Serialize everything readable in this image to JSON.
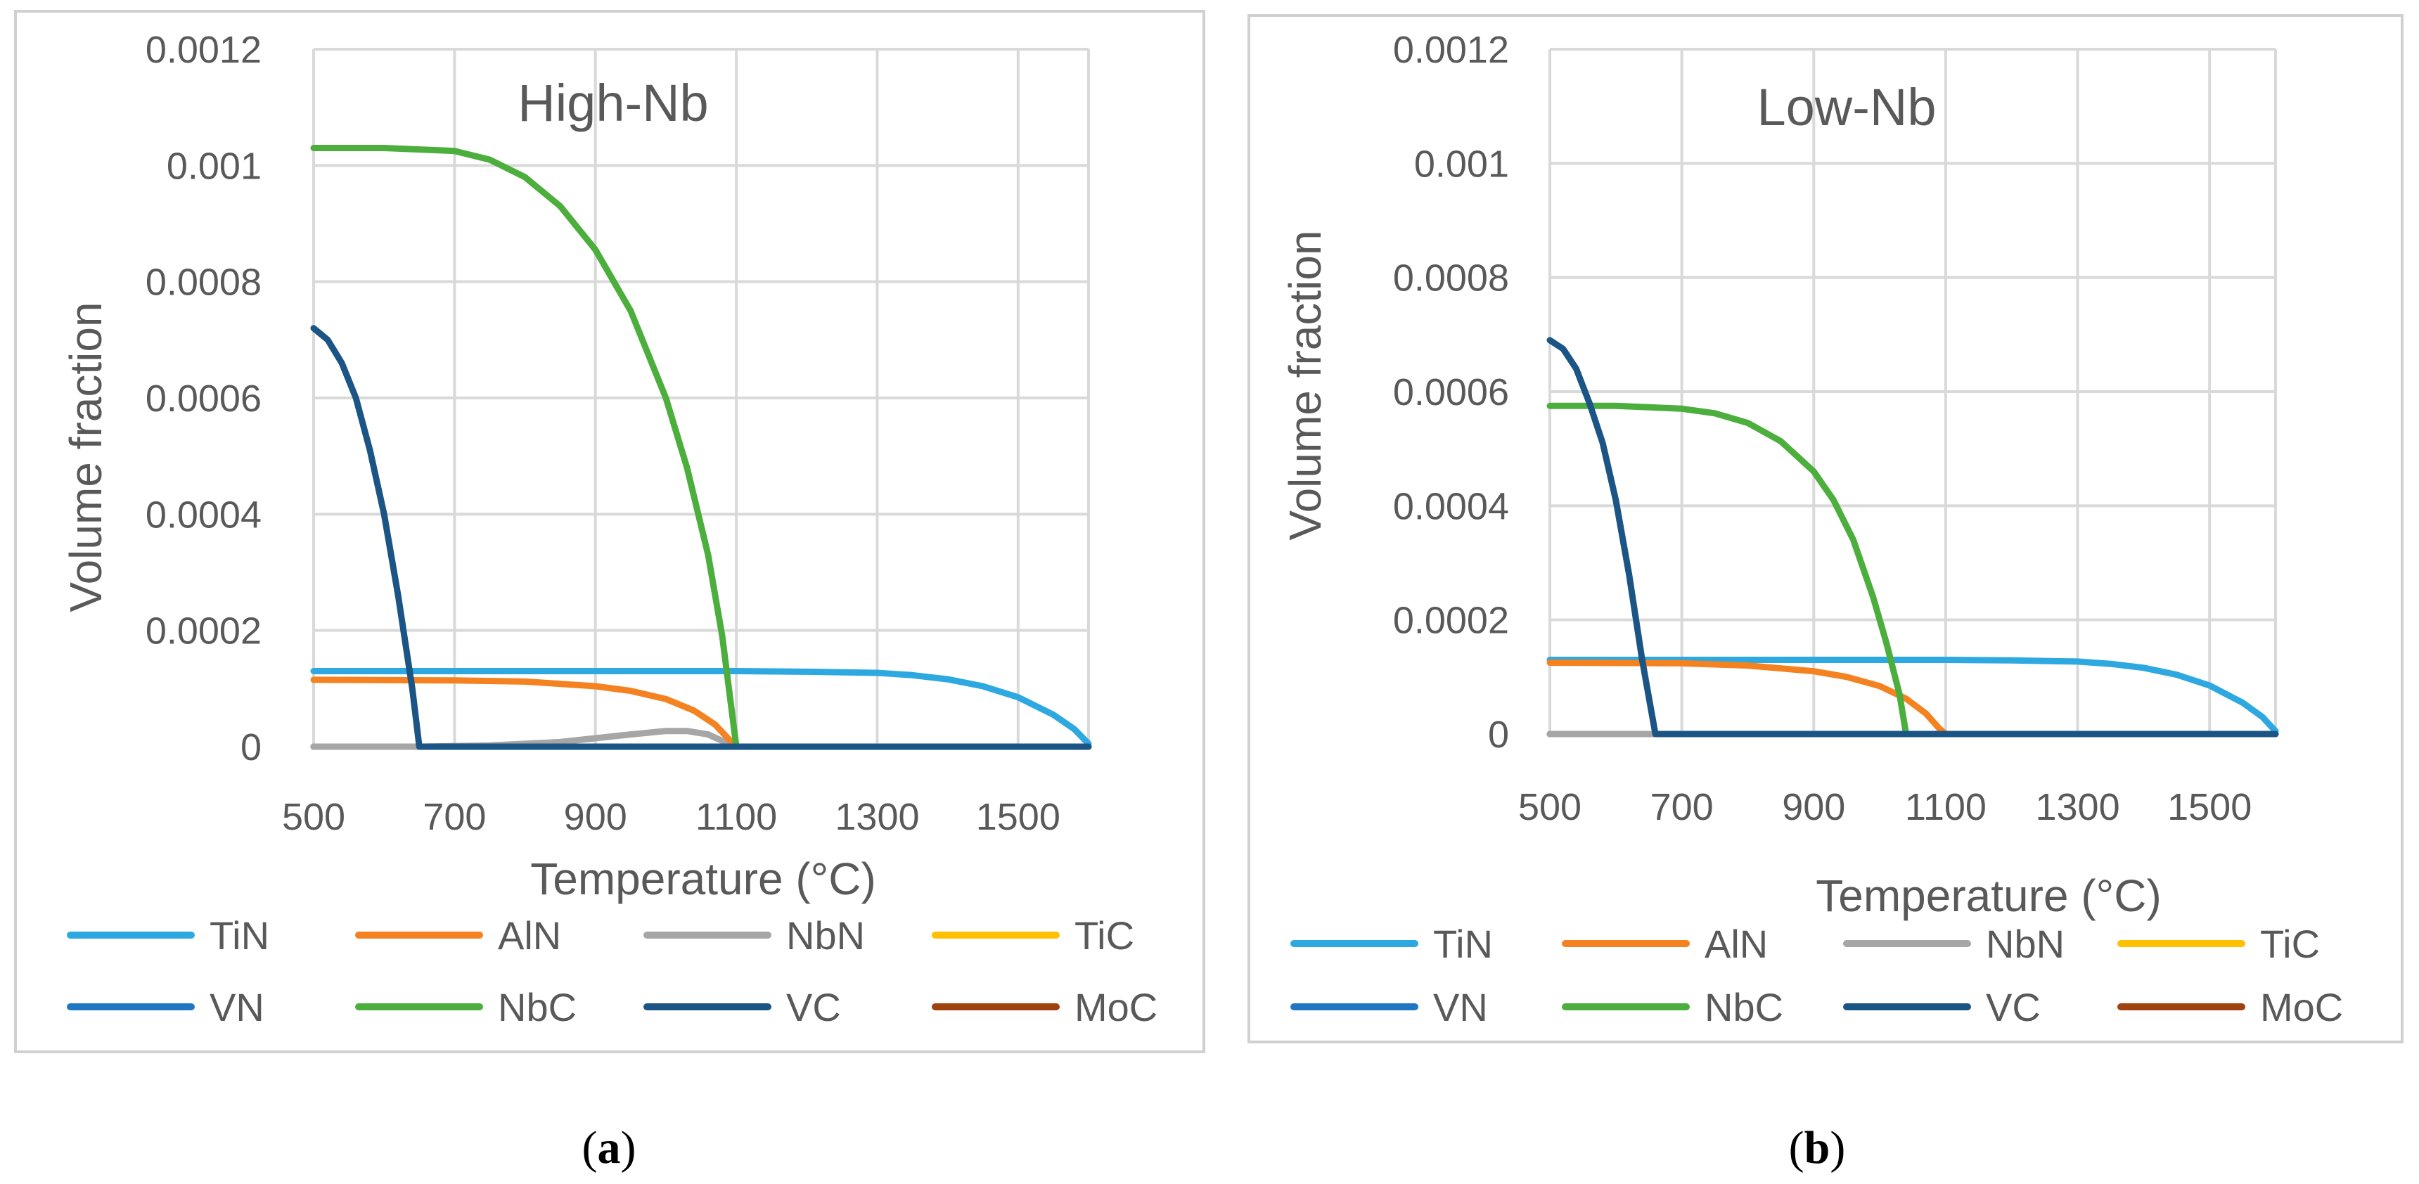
{
  "colors": {
    "TiN": "#2ea8e0",
    "AlN": "#f58220",
    "NbN": "#a6a6a6",
    "TiC": "#ffc000",
    "VN": "#1f77c4",
    "NbC": "#4cae3c",
    "VC": "#1b5585",
    "MoC": "#a0420f"
  },
  "legend_items": [
    "TiN",
    "AlN",
    "NbN",
    "TiC",
    "VN",
    "NbC",
    "VC",
    "MoC"
  ],
  "chart_data": [
    {
      "type": "line",
      "title": "High-Nb",
      "caption": "a",
      "xlabel": "Temperature (°C)",
      "ylabel": "Volume fraction",
      "xlim": [
        500,
        1600
      ],
      "ylim": [
        0,
        0.0012
      ],
      "xticks": [
        500,
        700,
        900,
        1100,
        1300,
        1500
      ],
      "xtick_labels": [
        "500",
        "700",
        "900",
        "1100",
        "1300",
        "1500"
      ],
      "yticks": [
        0,
        0.0002,
        0.0004,
        0.0006,
        0.0008,
        0.001,
        0.0012
      ],
      "ytick_labels": [
        "0",
        "0.0002",
        "0.0004",
        "0.0006",
        "0.0008",
        "0.001",
        "0.0012"
      ],
      "series": [
        {
          "name": "TiN",
          "x": [
            500,
            700,
            900,
            1100,
            1200,
            1300,
            1350,
            1400,
            1450,
            1500,
            1550,
            1580,
            1600
          ],
          "y": [
            0.00013,
            0.00013,
            0.00013,
            0.00013,
            0.000129,
            0.000127,
            0.000123,
            0.000116,
            0.000104,
            8.5e-05,
            5.5e-05,
            3e-05,
            5e-06
          ]
        },
        {
          "name": "AlN",
          "x": [
            500,
            700,
            800,
            900,
            950,
            1000,
            1040,
            1070,
            1090,
            1100
          ],
          "y": [
            0.000115,
            0.000114,
            0.000112,
            0.000104,
            9.6e-05,
            8.2e-05,
            6.2e-05,
            3.8e-05,
            1.2e-05,
            0
          ]
        },
        {
          "name": "NbN",
          "x": [
            500,
            650,
            750,
            850,
            950,
            1000,
            1030,
            1060,
            1080,
            1100,
            1600
          ],
          "y": [
            0,
            0,
            2e-06,
            8e-06,
            2.1e-05,
            2.7e-05,
            2.7e-05,
            2.1e-05,
            1e-05,
            0,
            0
          ]
        },
        {
          "name": "TiC",
          "x": [
            500,
            1600
          ],
          "y": [
            0,
            0
          ]
        },
        {
          "name": "VN",
          "x": [
            500,
            1600
          ],
          "y": [
            0,
            0
          ]
        },
        {
          "name": "NbC",
          "x": [
            500,
            600,
            700,
            750,
            800,
            850,
            900,
            950,
            1000,
            1030,
            1060,
            1080,
            1100
          ],
          "y": [
            0.00103,
            0.00103,
            0.001025,
            0.00101,
            0.00098,
            0.00093,
            0.000855,
            0.00075,
            0.0006,
            0.00048,
            0.00033,
            0.00019,
            0
          ]
        },
        {
          "name": "VC",
          "x": [
            500,
            520,
            540,
            560,
            580,
            600,
            620,
            640,
            650,
            1600
          ],
          "y": [
            0.00072,
            0.0007,
            0.00066,
            0.0006,
            0.00051,
            0.0004,
            0.00026,
            0.0001,
            0,
            0
          ]
        },
        {
          "name": "MoC",
          "x": [
            500,
            1600
          ],
          "y": [
            0,
            0
          ]
        }
      ]
    },
    {
      "type": "line",
      "title": "Low-Nb",
      "caption": "b",
      "xlabel": "Temperature (°C)",
      "ylabel": "Volume fraction",
      "xlim": [
        500,
        1600
      ],
      "ylim": [
        0,
        0.0012
      ],
      "xticks": [
        500,
        700,
        900,
        1100,
        1300,
        1500
      ],
      "xtick_labels": [
        "500",
        "700",
        "900",
        "1100",
        "1300",
        "1500"
      ],
      "yticks": [
        0,
        0.0002,
        0.0004,
        0.0006,
        0.0008,
        0.001,
        0.0012
      ],
      "ytick_labels": [
        "0",
        "0.0002",
        "0.0004",
        "0.0006",
        "0.0008",
        "0.001",
        "0.0012"
      ],
      "series": [
        {
          "name": "TiN",
          "x": [
            500,
            700,
            900,
            1100,
            1200,
            1300,
            1350,
            1400,
            1450,
            1500,
            1550,
            1580,
            1600
          ],
          "y": [
            0.00013,
            0.00013,
            0.00013,
            0.00013,
            0.000129,
            0.000127,
            0.000123,
            0.000116,
            0.000104,
            8.5e-05,
            5.5e-05,
            3e-05,
            5e-06
          ]
        },
        {
          "name": "AlN",
          "x": [
            500,
            700,
            800,
            900,
            950,
            1000,
            1040,
            1070,
            1090,
            1100
          ],
          "y": [
            0.000125,
            0.000124,
            0.00012,
            0.00011,
            0.0001,
            8.4e-05,
            6.2e-05,
            3.6e-05,
            1e-05,
            0
          ]
        },
        {
          "name": "NbN",
          "x": [
            500,
            1600
          ],
          "y": [
            0,
            0
          ]
        },
        {
          "name": "TiC",
          "x": [
            500,
            1600
          ],
          "y": [
            0,
            0
          ]
        },
        {
          "name": "VN",
          "x": [
            500,
            1600
          ],
          "y": [
            0,
            0
          ]
        },
        {
          "name": "NbC",
          "x": [
            500,
            600,
            700,
            750,
            800,
            850,
            900,
            930,
            960,
            990,
            1010,
            1030,
            1040
          ],
          "y": [
            0.000575,
            0.000575,
            0.00057,
            0.000562,
            0.000545,
            0.000513,
            0.00046,
            0.00041,
            0.00034,
            0.00024,
            0.00016,
            7e-05,
            0
          ]
        },
        {
          "name": "VC",
          "x": [
            500,
            520,
            540,
            560,
            580,
            600,
            620,
            640,
            660,
            1600
          ],
          "y": [
            0.00069,
            0.000675,
            0.00064,
            0.00058,
            0.00051,
            0.00041,
            0.00028,
            0.00013,
            0,
            0
          ]
        },
        {
          "name": "MoC",
          "x": [
            500,
            1600
          ],
          "y": [
            0,
            0
          ]
        }
      ]
    }
  ]
}
